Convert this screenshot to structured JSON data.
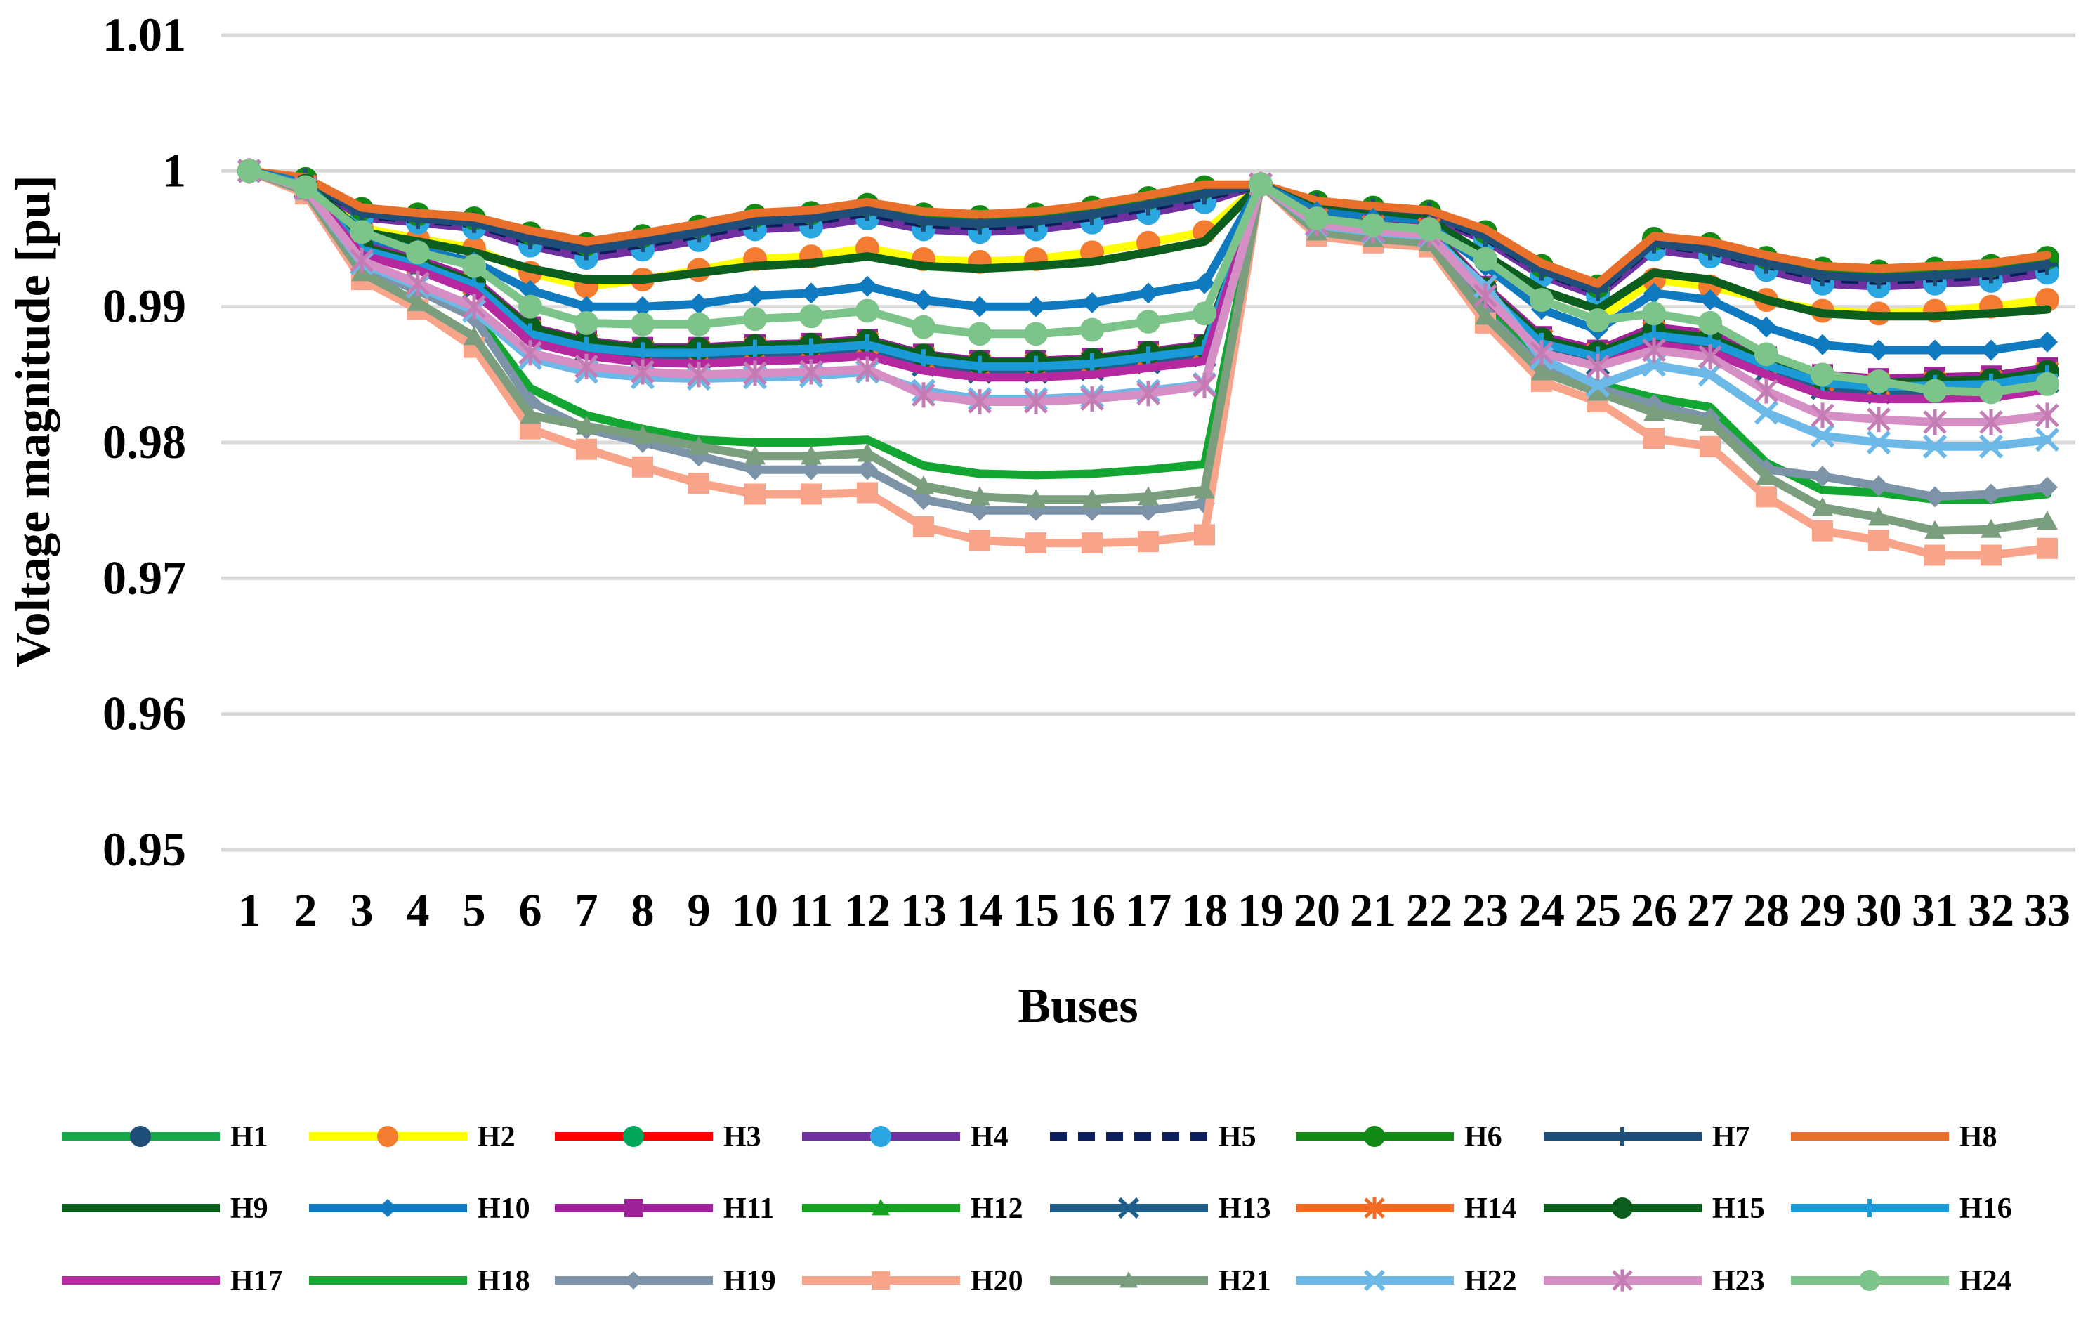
{
  "chart_data": {
    "type": "line",
    "title": "",
    "xlabel": "Buses",
    "ylabel": "Voltage magnitude [pu]",
    "ylim": [
      0.95,
      1.01
    ],
    "yticks": [
      0.95,
      0.96,
      0.97,
      0.98,
      0.99,
      1,
      1.01
    ],
    "ytick_labels": [
      "0.95",
      "0.96",
      "0.97",
      "0.98",
      "0.99",
      "1",
      "1.01"
    ],
    "grid": true,
    "legend_position": "bottom",
    "categories": [
      "1",
      "2",
      "3",
      "4",
      "5",
      "6",
      "7",
      "8",
      "9",
      "10",
      "11",
      "12",
      "13",
      "14",
      "15",
      "16",
      "17",
      "18",
      "19",
      "20",
      "21",
      "22",
      "23",
      "24",
      "25",
      "26",
      "27",
      "28",
      "29",
      "30",
      "31",
      "32",
      "33"
    ],
    "series": [
      {
        "name": "H1",
        "color": "#17a84a",
        "marker": "circle",
        "marker_color": "#1f4e79",
        "values": [
          1,
          0.9993,
          0.9967,
          0.9963,
          0.996,
          0.9947,
          0.9938,
          0.9945,
          0.9952,
          0.996,
          0.9962,
          0.9968,
          0.996,
          0.9958,
          0.996,
          0.9965,
          0.9972,
          0.998,
          0.999,
          0.9975,
          0.997,
          0.9967,
          0.995,
          0.9925,
          0.991,
          0.9945,
          0.994,
          0.993,
          0.992,
          0.9918,
          0.992,
          0.9922,
          0.9928
        ]
      },
      {
        "name": "H2",
        "color": "#ffff00",
        "marker": "circle",
        "marker_color": "#f47c30",
        "values": [
          1,
          0.9992,
          0.9958,
          0.995,
          0.9943,
          0.9925,
          0.9915,
          0.992,
          0.9927,
          0.9935,
          0.9937,
          0.9943,
          0.9935,
          0.9933,
          0.9935,
          0.994,
          0.9947,
          0.9955,
          0.999,
          0.997,
          0.9965,
          0.996,
          0.9935,
          0.9905,
          0.989,
          0.992,
          0.9915,
          0.9905,
          0.9897,
          0.9895,
          0.9897,
          0.99,
          0.9905
        ]
      },
      {
        "name": "H3",
        "color": "#ff0000",
        "marker": "circle",
        "marker_color": "#00a65a",
        "values": [
          1,
          0.9994,
          0.9971,
          0.9967,
          0.9964,
          0.9952,
          0.9944,
          0.995,
          0.9957,
          0.9965,
          0.9967,
          0.9973,
          0.9966,
          0.9964,
          0.9966,
          0.9971,
          0.9978,
          0.9986,
          0.999,
          0.9976,
          0.9972,
          0.9969,
          0.9953,
          0.9928,
          0.9913,
          0.9948,
          0.9944,
          0.9934,
          0.9925,
          0.9923,
          0.9925,
          0.9927,
          0.9933
        ]
      },
      {
        "name": "H4",
        "color": "#7030a0",
        "marker": "circle",
        "marker_color": "#2aa7e0",
        "values": [
          1,
          0.9993,
          0.9966,
          0.9962,
          0.9958,
          0.9945,
          0.9936,
          0.9942,
          0.9949,
          0.9957,
          0.9959,
          0.9965,
          0.9957,
          0.9955,
          0.9957,
          0.9962,
          0.9969,
          0.9977,
          0.999,
          0.9975,
          0.997,
          0.9966,
          0.9949,
          0.9923,
          0.9908,
          0.9942,
          0.9937,
          0.9927,
          0.9917,
          0.9915,
          0.9917,
          0.9919,
          0.9925
        ]
      },
      {
        "name": "H5",
        "color": "#0c1f5c",
        "marker": "none",
        "dashed": true,
        "values": [
          1,
          0.9994,
          0.9968,
          0.9964,
          0.9961,
          0.9948,
          0.994,
          0.9946,
          0.9953,
          0.9961,
          0.9963,
          0.9969,
          0.9961,
          0.9959,
          0.9961,
          0.9966,
          0.9973,
          0.9981,
          0.999,
          0.9975,
          0.9971,
          0.9968,
          0.9951,
          0.9926,
          0.9911,
          0.9946,
          0.9941,
          0.9931,
          0.9921,
          0.9919,
          0.9921,
          0.9923,
          0.9929
        ]
      },
      {
        "name": "H6",
        "color": "#138a13",
        "marker": "circle",
        "marker_color": "#138a13",
        "values": [
          1,
          0.9994,
          0.9972,
          0.9968,
          0.9965,
          0.9954,
          0.9946,
          0.9952,
          0.9959,
          0.9967,
          0.9969,
          0.9975,
          0.9968,
          0.9966,
          0.9968,
          0.9973,
          0.998,
          0.9988,
          0.999,
          0.9977,
          0.9973,
          0.997,
          0.9955,
          0.993,
          0.9915,
          0.995,
          0.9946,
          0.9936,
          0.9928,
          0.9926,
          0.9928,
          0.993,
          0.9936
        ]
      },
      {
        "name": "H7",
        "color": "#1f4e79",
        "marker": "plus",
        "marker_color": "#1f4e79",
        "values": [
          1,
          0.9994,
          0.9969,
          0.9965,
          0.9962,
          0.995,
          0.9942,
          0.9948,
          0.9955,
          0.9963,
          0.9965,
          0.9971,
          0.9963,
          0.9961,
          0.9963,
          0.9968,
          0.9975,
          0.9983,
          0.999,
          0.9976,
          0.9972,
          0.9969,
          0.9952,
          0.9927,
          0.9912,
          0.9947,
          0.9942,
          0.9932,
          0.9923,
          0.9921,
          0.9923,
          0.9925,
          0.9931
        ]
      },
      {
        "name": "H8",
        "color": "#e8702a",
        "marker": "none",
        "values": [
          1,
          0.9995,
          0.9973,
          0.9969,
          0.9966,
          0.9956,
          0.9948,
          0.9954,
          0.9961,
          0.9969,
          0.9971,
          0.9977,
          0.997,
          0.9968,
          0.997,
          0.9975,
          0.9982,
          0.999,
          0.999,
          0.9978,
          0.9974,
          0.9971,
          0.9957,
          0.9932,
          0.9917,
          0.9952,
          0.9948,
          0.9938,
          0.993,
          0.9928,
          0.993,
          0.9932,
          0.9938
        ]
      },
      {
        "name": "H9",
        "color": "#0b5e1e",
        "marker": "none",
        "values": [
          1,
          0.9991,
          0.9955,
          0.9948,
          0.994,
          0.9928,
          0.992,
          0.992,
          0.9925,
          0.993,
          0.9932,
          0.9937,
          0.993,
          0.9928,
          0.993,
          0.9933,
          0.994,
          0.9948,
          0.999,
          0.9972,
          0.9967,
          0.9964,
          0.9938,
          0.9912,
          0.9898,
          0.9925,
          0.992,
          0.9905,
          0.9895,
          0.9893,
          0.9893,
          0.9895,
          0.9898
        ]
      },
      {
        "name": "H10",
        "color": "#0f7ac0",
        "marker": "diamond",
        "marker_color": "#0f7ac0",
        "values": [
          1,
          0.9991,
          0.995,
          0.9942,
          0.9933,
          0.9912,
          0.99,
          0.99,
          0.9902,
          0.9908,
          0.991,
          0.9915,
          0.9905,
          0.99,
          0.99,
          0.9903,
          0.991,
          0.9917,
          0.999,
          0.997,
          0.9965,
          0.996,
          0.993,
          0.9898,
          0.9883,
          0.991,
          0.9905,
          0.9885,
          0.9872,
          0.9868,
          0.9868,
          0.9868,
          0.9874
        ]
      },
      {
        "name": "H11",
        "color": "#a0229a",
        "marker": "square",
        "marker_color": "#a0229a",
        "values": [
          1,
          0.9989,
          0.9945,
          0.9935,
          0.992,
          0.9885,
          0.9875,
          0.987,
          0.987,
          0.9872,
          0.9873,
          0.9876,
          0.9865,
          0.986,
          0.986,
          0.9862,
          0.9867,
          0.9872,
          0.999,
          0.9965,
          0.996,
          0.9958,
          0.9915,
          0.9878,
          0.9868,
          0.9885,
          0.988,
          0.9863,
          0.985,
          0.9847,
          0.9848,
          0.9849,
          0.9855
        ]
      },
      {
        "name": "H12",
        "color": "#17a120",
        "marker": "triangle",
        "marker_color": "#17a120",
        "values": [
          1,
          0.9988,
          0.994,
          0.993,
          0.9915,
          0.988,
          0.987,
          0.9865,
          0.9865,
          0.9867,
          0.9868,
          0.9871,
          0.986,
          0.9855,
          0.9855,
          0.9857,
          0.9862,
          0.9867,
          0.999,
          0.9963,
          0.9958,
          0.9956,
          0.991,
          0.9872,
          0.9862,
          0.9878,
          0.9873,
          0.9856,
          0.9843,
          0.984,
          0.9841,
          0.9842,
          0.9848
        ]
      },
      {
        "name": "H13",
        "color": "#1f5f8a",
        "marker": "x",
        "marker_color": "#1f5f8a",
        "values": [
          1,
          0.9988,
          0.994,
          0.993,
          0.9914,
          0.9878,
          0.9868,
          0.9863,
          0.9862,
          0.9864,
          0.9865,
          0.9868,
          0.9857,
          0.9852,
          0.9852,
          0.9854,
          0.9859,
          0.9864,
          0.999,
          0.9963,
          0.9958,
          0.9955,
          0.9908,
          0.9868,
          0.9858,
          0.9875,
          0.987,
          0.9853,
          0.984,
          0.9837,
          0.9838,
          0.9839,
          0.9845
        ]
      },
      {
        "name": "H14",
        "color": "#f26b21",
        "marker": "star",
        "marker_color": "#f26b21",
        "values": [
          1,
          0.9989,
          0.9943,
          0.9932,
          0.9917,
          0.9882,
          0.9872,
          0.9867,
          0.9867,
          0.9869,
          0.987,
          0.9873,
          0.9862,
          0.9857,
          0.9857,
          0.9859,
          0.9864,
          0.9869,
          0.999,
          0.9964,
          0.9959,
          0.9957,
          0.9912,
          0.9875,
          0.9865,
          0.9881,
          0.9876,
          0.9859,
          0.9846,
          0.9843,
          0.9844,
          0.9845,
          0.9851
        ]
      },
      {
        "name": "H15",
        "color": "#0b5e1e",
        "marker": "circle",
        "marker_color": "#0b5e1e",
        "values": [
          1,
          0.9989,
          0.9944,
          0.9933,
          0.9918,
          0.9884,
          0.9874,
          0.9869,
          0.9869,
          0.9871,
          0.9872,
          0.9875,
          0.9864,
          0.9859,
          0.9859,
          0.9861,
          0.9866,
          0.9871,
          0.999,
          0.9965,
          0.996,
          0.9957,
          0.9913,
          0.9876,
          0.9866,
          0.9882,
          0.9877,
          0.986,
          0.9847,
          0.9844,
          0.9845,
          0.9846,
          0.9852
        ]
      },
      {
        "name": "H16",
        "color": "#1a9ad6",
        "marker": "plus",
        "marker_color": "#1a9ad6",
        "values": [
          1,
          0.9989,
          0.9942,
          0.9931,
          0.9916,
          0.988,
          0.987,
          0.9866,
          0.9866,
          0.9868,
          0.9869,
          0.9872,
          0.9861,
          0.9856,
          0.9856,
          0.9858,
          0.9863,
          0.9868,
          0.999,
          0.9964,
          0.9959,
          0.9956,
          0.9911,
          0.9873,
          0.9863,
          0.9879,
          0.9874,
          0.9857,
          0.9844,
          0.9841,
          0.9842,
          0.9843,
          0.9849
        ]
      },
      {
        "name": "H17",
        "color": "#b5289f",
        "marker": "none",
        "values": [
          1,
          0.9988,
          0.9938,
          0.9927,
          0.9911,
          0.9874,
          0.9864,
          0.9859,
          0.9858,
          0.986,
          0.9861,
          0.9864,
          0.9853,
          0.9848,
          0.9848,
          0.985,
          0.9855,
          0.986,
          0.999,
          0.9962,
          0.9957,
          0.9955,
          0.9906,
          0.9866,
          0.9856,
          0.9872,
          0.9867,
          0.985,
          0.9835,
          0.9832,
          0.9832,
          0.9833,
          0.9839
        ]
      },
      {
        "name": "H18",
        "color": "#13a632",
        "marker": "none",
        "values": [
          1,
          0.9985,
          0.993,
          0.9915,
          0.9895,
          0.984,
          0.982,
          0.981,
          0.9802,
          0.98,
          0.98,
          0.9802,
          0.9783,
          0.9777,
          0.9776,
          0.9777,
          0.978,
          0.9784,
          0.999,
          0.9958,
          0.9953,
          0.995,
          0.9898,
          0.9858,
          0.9843,
          0.9833,
          0.9826,
          0.9785,
          0.9765,
          0.9763,
          0.9758,
          0.9758,
          0.9762
        ]
      },
      {
        "name": "H19",
        "color": "#7d93a8",
        "marker": "diamond",
        "marker_color": "#7d93a8",
        "values": [
          1,
          0.9985,
          0.9928,
          0.9912,
          0.9892,
          0.983,
          0.981,
          0.98,
          0.979,
          0.978,
          0.978,
          0.978,
          0.9758,
          0.975,
          0.975,
          0.975,
          0.975,
          0.9755,
          0.999,
          0.9957,
          0.9952,
          0.995,
          0.9895,
          0.9855,
          0.984,
          0.9828,
          0.9818,
          0.978,
          0.9775,
          0.9768,
          0.976,
          0.9762,
          0.9767
        ]
      },
      {
        "name": "H20",
        "color": "#f7a48a",
        "marker": "square",
        "marker_color": "#f7a48a",
        "values": [
          1,
          0.9983,
          0.992,
          0.9898,
          0.987,
          0.981,
          0.9795,
          0.9782,
          0.977,
          0.9762,
          0.9762,
          0.9763,
          0.9738,
          0.9728,
          0.9726,
          0.9726,
          0.9727,
          0.9732,
          0.999,
          0.9952,
          0.9947,
          0.9944,
          0.9888,
          0.9845,
          0.983,
          0.9803,
          0.9797,
          0.976,
          0.9735,
          0.9728,
          0.9717,
          0.9717,
          0.9722
        ]
      },
      {
        "name": "H21",
        "color": "#7a9e7e",
        "marker": "triangle",
        "marker_color": "#7a9e7e",
        "values": [
          1,
          0.9985,
          0.9925,
          0.9903,
          0.9878,
          0.982,
          0.9812,
          0.9805,
          0.9797,
          0.979,
          0.979,
          0.9792,
          0.9768,
          0.976,
          0.9758,
          0.9758,
          0.976,
          0.9765,
          0.999,
          0.9955,
          0.995,
          0.9947,
          0.9893,
          0.9852,
          0.9837,
          0.9822,
          0.9815,
          0.9775,
          0.9752,
          0.9745,
          0.9735,
          0.9736,
          0.9742
        ]
      },
      {
        "name": "H22",
        "color": "#6cb8e6",
        "marker": "x",
        "marker_color": "#6cb8e6",
        "values": [
          1,
          0.9987,
          0.9932,
          0.9915,
          0.9897,
          0.9862,
          0.9852,
          0.9848,
          0.9847,
          0.9848,
          0.9849,
          0.9852,
          0.9838,
          0.9832,
          0.9832,
          0.9834,
          0.9838,
          0.9843,
          0.999,
          0.996,
          0.9955,
          0.9952,
          0.9915,
          0.9862,
          0.9842,
          0.9857,
          0.985,
          0.9822,
          0.9805,
          0.98,
          0.9797,
          0.9797,
          0.9802
        ]
      },
      {
        "name": "H23",
        "color": "#d68fc4",
        "marker": "star",
        "marker_color": "#c47cb4",
        "values": [
          1,
          0.9987,
          0.9934,
          0.9917,
          0.99,
          0.9866,
          0.9856,
          0.9852,
          0.985,
          0.9851,
          0.9852,
          0.9854,
          0.9835,
          0.983,
          0.983,
          0.9832,
          0.9836,
          0.9842,
          0.999,
          0.9961,
          0.9956,
          0.9953,
          0.9908,
          0.9866,
          0.9856,
          0.9868,
          0.9863,
          0.9838,
          0.982,
          0.9817,
          0.9815,
          0.9815,
          0.982
        ]
      },
      {
        "name": "H24",
        "color": "#7cc48a",
        "marker": "circle",
        "marker_color": "#7cc48a",
        "values": [
          1,
          0.9988,
          0.9955,
          0.994,
          0.993,
          0.99,
          0.9888,
          0.9887,
          0.9887,
          0.9891,
          0.9893,
          0.9897,
          0.9885,
          0.988,
          0.988,
          0.9883,
          0.9889,
          0.9895,
          0.999,
          0.9965,
          0.996,
          0.9957,
          0.9935,
          0.9905,
          0.989,
          0.9895,
          0.9888,
          0.9865,
          0.985,
          0.9845,
          0.9838,
          0.9837,
          0.9843
        ]
      }
    ]
  }
}
